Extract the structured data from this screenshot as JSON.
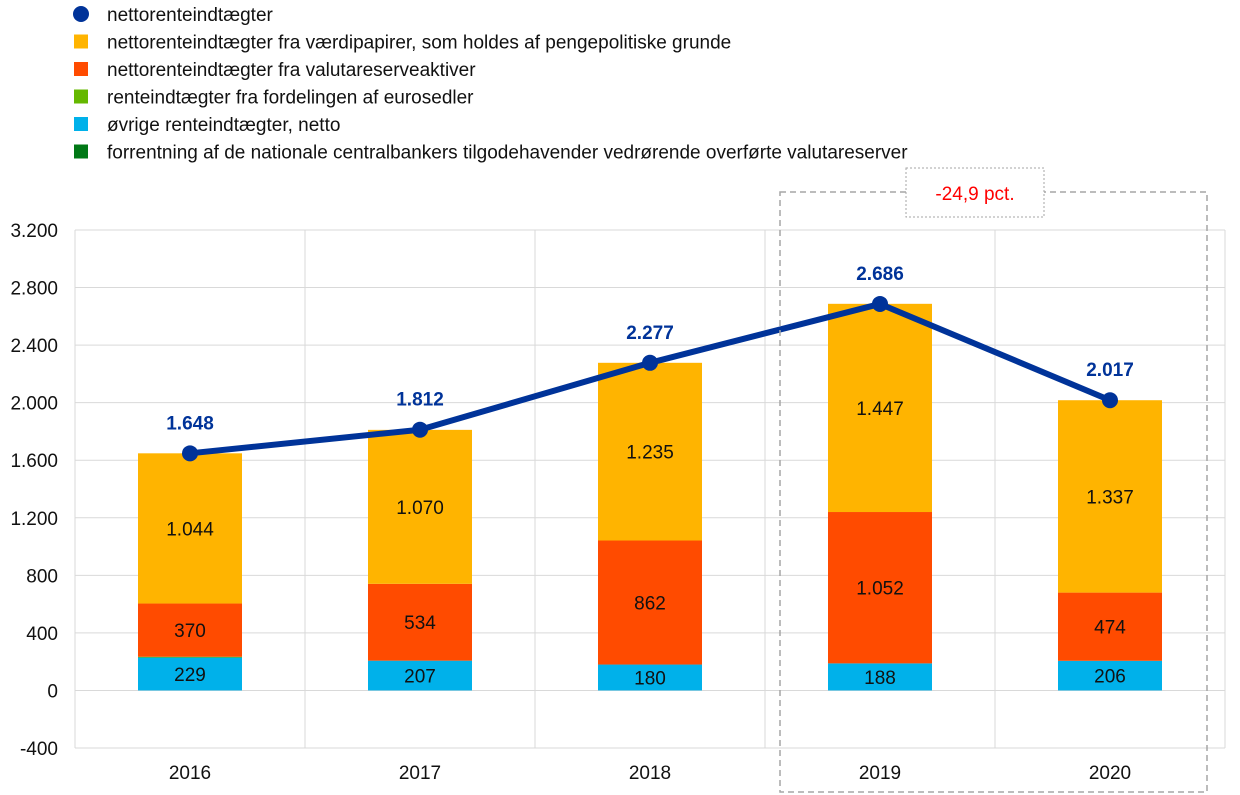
{
  "chart_data": {
    "type": "bar",
    "categories": [
      "2016",
      "2017",
      "2018",
      "2019",
      "2020"
    ],
    "ylim": [
      -400,
      3200
    ],
    "y_ticks": [
      -400,
      0,
      400,
      800,
      1200,
      1600,
      2000,
      2400,
      2800,
      3200
    ],
    "y_tick_labels": [
      "-400",
      "0",
      "400",
      "800",
      "1.200",
      "1.600",
      "2.000",
      "2.400",
      "2.800",
      "3.200"
    ],
    "stacked": true,
    "grid": true,
    "legend_position": "top-left",
    "series": [
      {
        "name": "nettorenteindtægter",
        "type": "line",
        "color": "#003399",
        "marker": "circle",
        "values": [
          1648,
          1812,
          2277,
          2686,
          2017
        ],
        "labels": [
          "1.648",
          "1.812",
          "2.277",
          "2.686",
          "2.017"
        ]
      },
      {
        "name": "nettorenteindtægter fra værdipapirer, som holdes af pengepolitiske grunde",
        "type": "bar",
        "color": "#ffb400",
        "marker": "square",
        "values": [
          1044,
          1070,
          1235,
          1447,
          1337
        ],
        "labels": [
          "1.044",
          "1.070",
          "1.235",
          "1.447",
          "1.337"
        ]
      },
      {
        "name": "nettorenteindtægter fra valutareserveaktiver",
        "type": "bar",
        "color": "#ff4b00",
        "marker": "square",
        "values": [
          370,
          534,
          862,
          1052,
          474
        ],
        "labels": [
          "370",
          "534",
          "862",
          "1.052",
          "474"
        ]
      },
      {
        "name": "renteindtægter fra fordelingen af eurosedler",
        "type": "bar",
        "color": "#65b800",
        "marker": "square",
        "values": [
          5,
          0,
          0,
          0,
          0
        ],
        "labels": []
      },
      {
        "name": "øvrige renteindtægter, netto",
        "type": "bar",
        "color": "#00b1ea",
        "marker": "square",
        "values": [
          229,
          207,
          180,
          188,
          206
        ],
        "labels": [
          "229",
          "207",
          "180",
          "188",
          "206"
        ]
      },
      {
        "name": "forrentning af de nationale centralbankers tilgodehavender vedrørende overførte valutareserver",
        "type": "bar",
        "color": "#007816",
        "marker": "square",
        "values": [
          0,
          0,
          0,
          0,
          0
        ],
        "labels": []
      }
    ],
    "stack_order": [
      4,
      3,
      2,
      1
    ],
    "annotation": {
      "text": "-24,9 pct.",
      "color": "#ff0000",
      "highlight_categories": [
        "2019",
        "2020"
      ]
    }
  }
}
